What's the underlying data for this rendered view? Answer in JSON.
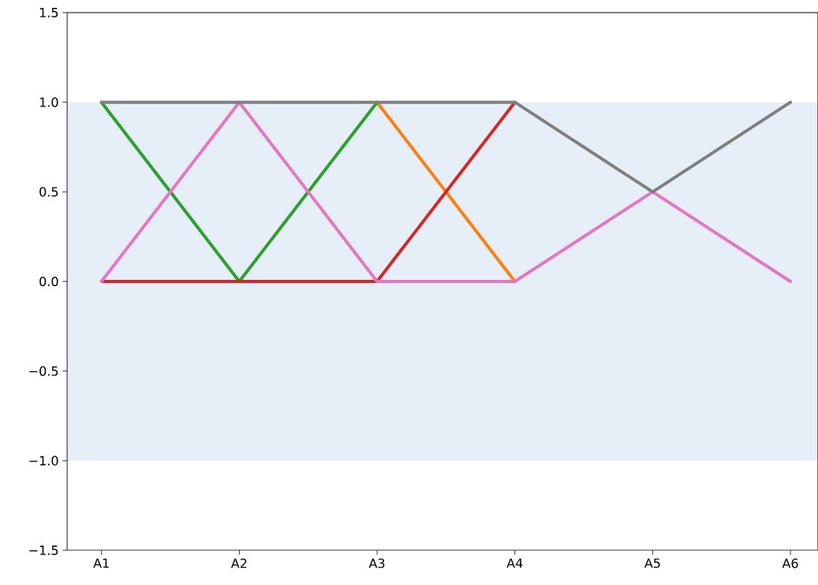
{
  "chart_data": {
    "type": "line",
    "categories": [
      "A1",
      "A2",
      "A3",
      "A4",
      "A5",
      "A6"
    ],
    "series": [
      {
        "color": "#ff7f0e",
        "values": [
          null,
          null,
          1,
          0,
          null,
          null
        ]
      },
      {
        "color": "#2ca02c",
        "values": [
          1,
          0,
          1,
          null,
          null,
          null
        ]
      },
      {
        "color": "#d62728",
        "values": [
          0,
          0,
          0,
          1,
          null,
          null
        ]
      },
      {
        "color": "#e377c2",
        "values": [
          0,
          1,
          0,
          0,
          0.5,
          0
        ]
      },
      {
        "color": "#7f7f7f",
        "values": [
          1,
          1,
          1,
          1,
          0.5,
          1
        ]
      }
    ],
    "ylim": [
      -1.5,
      1.5
    ],
    "yticks": [
      {
        "value": -1.5,
        "label": "−1.5"
      },
      {
        "value": -1.0,
        "label": "−1.0"
      },
      {
        "value": -0.5,
        "label": "−0.5"
      },
      {
        "value": 0.0,
        "label": "0.0"
      },
      0.5,
      {
        "value": 1.0,
        "label": "1.0"
      },
      1.5
    ],
    "bands": [
      {
        "axis": "y",
        "from": -1,
        "to": 1,
        "color": "#e6eff7"
      }
    ],
    "grid": false,
    "marker": "none",
    "line_style": "solid"
  }
}
